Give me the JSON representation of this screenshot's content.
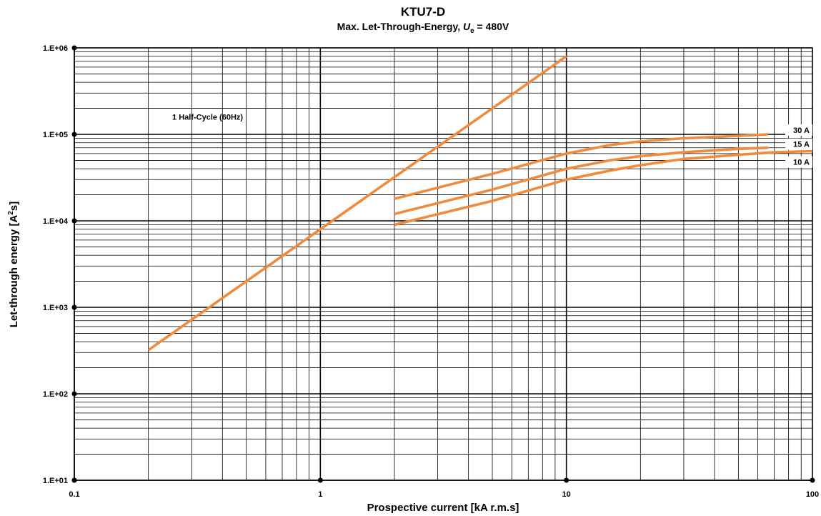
{
  "chart_data": {
    "type": "line",
    "title": "KTU7-D",
    "subtitle": {
      "prefix": "Max. Let-Through-Energy, ",
      "var_main": "U",
      "var_sub": "e",
      "suffix": " = 480V"
    },
    "xlabel": "Prospective current [kA r.m.s]",
    "ylabel": {
      "prefix": "Let-through energy [A",
      "sup": "2",
      "suffix": "s]"
    },
    "x_scale": "log",
    "y_scale": "log",
    "xlim": [
      0.1,
      100
    ],
    "ylim": [
      10,
      1000000
    ],
    "x_ticks": [
      {
        "value": 0.1,
        "label": "0.1"
      },
      {
        "value": 1,
        "label": "1"
      },
      {
        "value": 10,
        "label": "10"
      },
      {
        "value": 100,
        "label": "100"
      }
    ],
    "y_ticks": [
      {
        "value": 10,
        "label": "1.E+01"
      },
      {
        "value": 100,
        "label": "1.E+02"
      },
      {
        "value": 1000,
        "label": "1.E+03"
      },
      {
        "value": 10000,
        "label": "1.E+04"
      },
      {
        "value": 100000,
        "label": "1.E+05"
      },
      {
        "value": 1000000,
        "label": "1.E+06"
      }
    ],
    "grid": true,
    "line_color": "#f08a3c",
    "series": [
      {
        "label": "1 Half-Cycle (60Hz)",
        "label_at": {
          "x": 0.25,
          "y": 160000
        },
        "x": [
          0.2,
          10
        ],
        "y": [
          320,
          800000
        ]
      },
      {
        "label": "30 A",
        "label_at": {
          "x": 100,
          "y": 112000
        },
        "x": [
          2,
          5,
          10,
          15,
          20,
          30,
          50,
          66
        ],
        "y": [
          18000,
          35000,
          60000,
          75000,
          83000,
          90000,
          96000,
          100000
        ]
      },
      {
        "label": "15 A",
        "label_at": {
          "x": 100,
          "y": 77000
        },
        "x": [
          2,
          5,
          10,
          15,
          20,
          30,
          50,
          66
        ],
        "y": [
          12000,
          23000,
          40000,
          50000,
          56000,
          62000,
          68000,
          70000
        ]
      },
      {
        "label": "10 A",
        "label_at": {
          "x": 100,
          "y": 48000
        },
        "x": [
          2,
          5,
          10,
          15,
          20,
          30,
          50,
          70,
          100
        ],
        "y": [
          9000,
          17000,
          30000,
          38000,
          44000,
          52000,
          58000,
          62000,
          64000
        ]
      }
    ]
  }
}
